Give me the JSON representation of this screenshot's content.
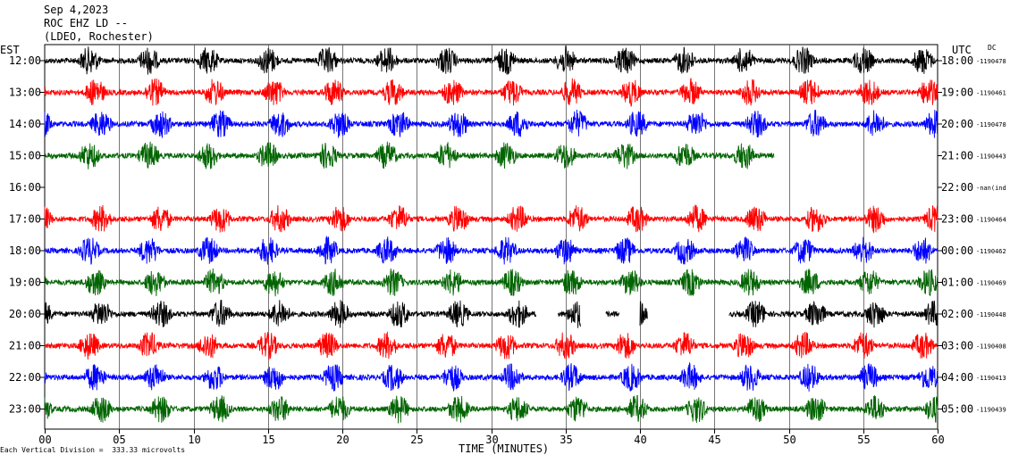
{
  "header": {
    "line1": "Sep 4,2023",
    "line2": "ROC EHZ LD --",
    "line3": "(LDEO, Rochester)"
  },
  "labels": {
    "est": "EST",
    "utc": "UTC",
    "dc": "DC",
    "scale_note": "Each Vertical Division =  333.33 microvolts",
    "xaxis_title": "TIME (MINUTES)"
  },
  "colors": {
    "black": "#000000",
    "red": "#ff0000",
    "blue": "#0000ff",
    "green": "#006400",
    "grid": "#000000"
  },
  "chart_data": {
    "type": "line",
    "title": "Sep 4,2023 ROC EHZ LD -- (LDEO, Rochester)",
    "xlabel": "TIME (MINUTES)",
    "xlim": [
      0,
      60
    ],
    "x_ticks": [
      "00",
      "05",
      "10",
      "15",
      "20",
      "25",
      "30",
      "35",
      "40",
      "45",
      "50",
      "55",
      "60"
    ],
    "rows": [
      {
        "est": "12:00",
        "utc": "18:00",
        "dc": "-1190478",
        "color": "black",
        "start": 0,
        "end": 60
      },
      {
        "est": "13:00",
        "utc": "19:00",
        "dc": "-1190461",
        "color": "red",
        "start": 0,
        "end": 60
      },
      {
        "est": "14:00",
        "utc": "20:00",
        "dc": "-1190478",
        "color": "blue",
        "start": 0,
        "end": 60
      },
      {
        "est": "15:00",
        "utc": "21:00",
        "dc": "-1190443",
        "color": "green",
        "start": 0,
        "end": 49
      },
      {
        "est": "16:00",
        "utc": "22:00",
        "dc": "-nan(ind",
        "color": "black",
        "start": 0,
        "end": 0
      },
      {
        "est": "17:00",
        "utc": "23:00",
        "dc": "-1190464",
        "color": "red",
        "start": 0,
        "end": 60
      },
      {
        "est": "18:00",
        "utc": "00:00",
        "dc": "-1190462",
        "color": "blue",
        "start": 0,
        "end": 60
      },
      {
        "est": "19:00",
        "utc": "01:00",
        "dc": "-1190469",
        "color": "green",
        "start": 0,
        "end": 60
      },
      {
        "est": "20:00",
        "utc": "02:00",
        "dc": "-1190448",
        "color": "black",
        "start": 0,
        "end": 60,
        "gaps": [
          [
            33,
            34.5
          ],
          [
            36,
            37.7
          ],
          [
            38.6,
            40
          ],
          [
            40.5,
            46
          ]
        ]
      },
      {
        "est": "21:00",
        "utc": "03:00",
        "dc": "-1190408",
        "color": "red",
        "start": 0,
        "end": 60
      },
      {
        "est": "22:00",
        "utc": "04:00",
        "dc": "-1190413",
        "color": "blue",
        "start": 0,
        "end": 60
      },
      {
        "est": "23:00",
        "utc": "05:00",
        "dc": "-1190439",
        "color": "green",
        "start": 0,
        "end": 60
      }
    ]
  }
}
